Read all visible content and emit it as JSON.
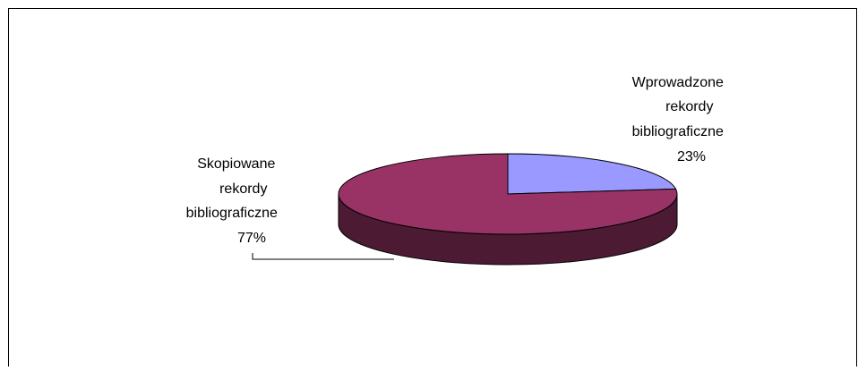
{
  "chart_data": {
    "type": "pie",
    "three_d": true,
    "slices": [
      {
        "label_lines": [
          "Wprowadzone",
          "rekordy",
          "bibliograficzne",
          "23%"
        ],
        "value": 23,
        "color": "#9999ff",
        "side_color": "#4a4a9a"
      },
      {
        "label_lines": [
          "Skopiowane",
          "rekordy",
          "bibliograficzne",
          "77%"
        ],
        "value": 77,
        "color": "#993366",
        "side_color": "#4d1a33"
      }
    ],
    "leader_line": "Skopiowane"
  }
}
